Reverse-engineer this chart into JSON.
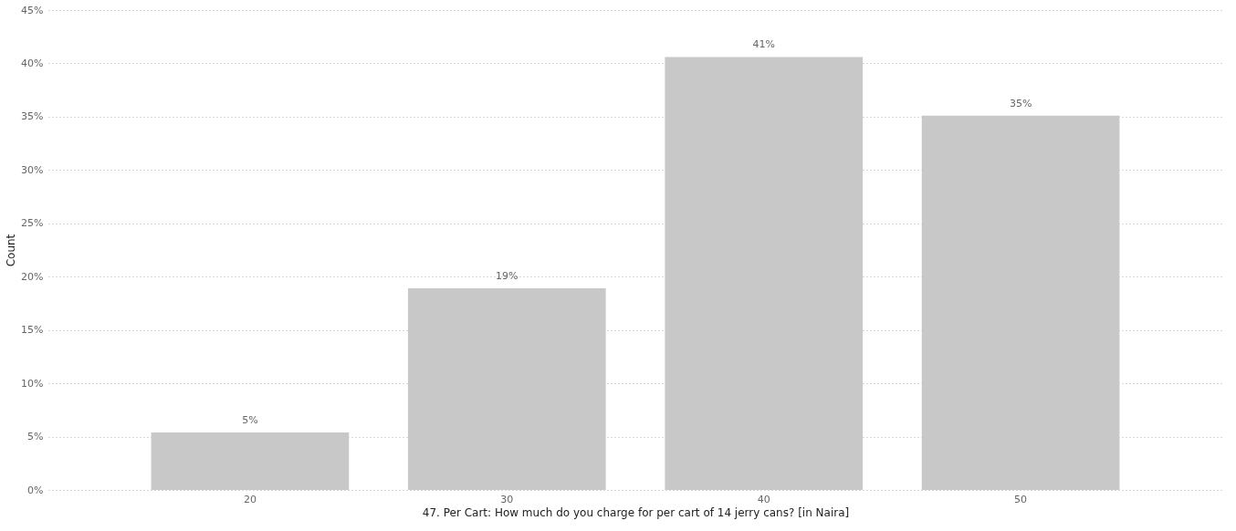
{
  "chart_data": {
    "type": "bar",
    "xlabel": "47. Per Cart: How much do you charge for per cart of 14 jerry cans? [in Naira]",
    "ylabel": "Count",
    "categories": [
      "20",
      "30",
      "40",
      "50"
    ],
    "values": [
      5.4,
      18.9,
      40.6,
      35.1
    ],
    "value_labels": [
      "5%",
      "19%",
      "41%",
      "35%"
    ],
    "color": "#c8c8c8",
    "ylim": [
      0,
      45
    ],
    "yticks": [
      {
        "value": 0,
        "label": "0%"
      },
      {
        "value": 5,
        "label": "5%"
      },
      {
        "value": 10,
        "label": "10%"
      },
      {
        "value": 15,
        "label": "15%"
      },
      {
        "value": 20,
        "label": "20%"
      },
      {
        "value": 25,
        "label": "25%"
      },
      {
        "value": 30,
        "label": "30%"
      },
      {
        "value": 35,
        "label": "35%"
      },
      {
        "value": 40,
        "label": "40%"
      },
      {
        "value": 45,
        "label": "45%"
      }
    ],
    "grid": "y"
  }
}
